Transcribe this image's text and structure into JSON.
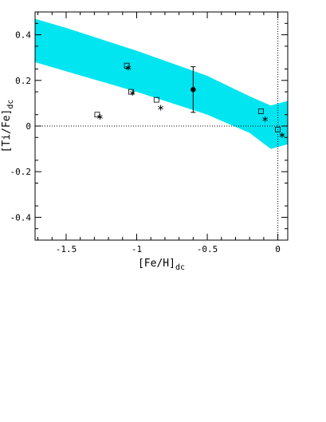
{
  "chart_data": {
    "type": "scatter",
    "title": "",
    "xlabel": "[Fe/H]",
    "xlabel_sub": "dc",
    "ylabel": "[Ti/Fe]",
    "ylabel_sub": "dc",
    "xlim": [
      -1.72,
      0.07
    ],
    "ylim": [
      -0.5,
      0.5
    ],
    "x_ticks": [
      -1.5,
      -1,
      -0.5,
      0
    ],
    "x_tick_labels": [
      "-1.5",
      "-1",
      "-0.5",
      "0"
    ],
    "y_ticks": [
      -0.4,
      -0.2,
      0,
      0.2,
      0.4
    ],
    "y_tick_labels": [
      "-0.4",
      "-0.2",
      "0",
      "0.2",
      "0.4"
    ],
    "grid": false,
    "reference_lines": {
      "y": 0,
      "x": 0,
      "style": "dotted"
    },
    "band": {
      "color": "#00e5f0",
      "x": [
        -1.72,
        -1.5,
        -1.0,
        -0.5,
        -0.2,
        -0.05,
        0.07
      ],
      "upper": [
        0.47,
        0.43,
        0.33,
        0.22,
        0.13,
        0.09,
        0.11
      ],
      "lower": [
        0.28,
        0.24,
        0.15,
        0.05,
        -0.03,
        -0.1,
        -0.08
      ]
    },
    "series": [
      {
        "marker": "square",
        "x": [
          -1.28,
          -1.07,
          -1.04,
          -0.86,
          -0.12,
          0.0
        ],
        "y": [
          0.05,
          0.265,
          0.15,
          0.115,
          0.065,
          -0.015
        ]
      },
      {
        "marker": "asterisk",
        "x": [
          -1.26,
          -1.06,
          -1.03,
          -0.83,
          -0.09,
          0.03
        ],
        "y": [
          0.04,
          0.255,
          0.145,
          0.08,
          0.03,
          -0.04
        ]
      },
      {
        "marker": "filled-circle",
        "x": [
          -0.6
        ],
        "y": [
          0.16
        ],
        "yerr": [
          0.1
        ]
      }
    ]
  }
}
